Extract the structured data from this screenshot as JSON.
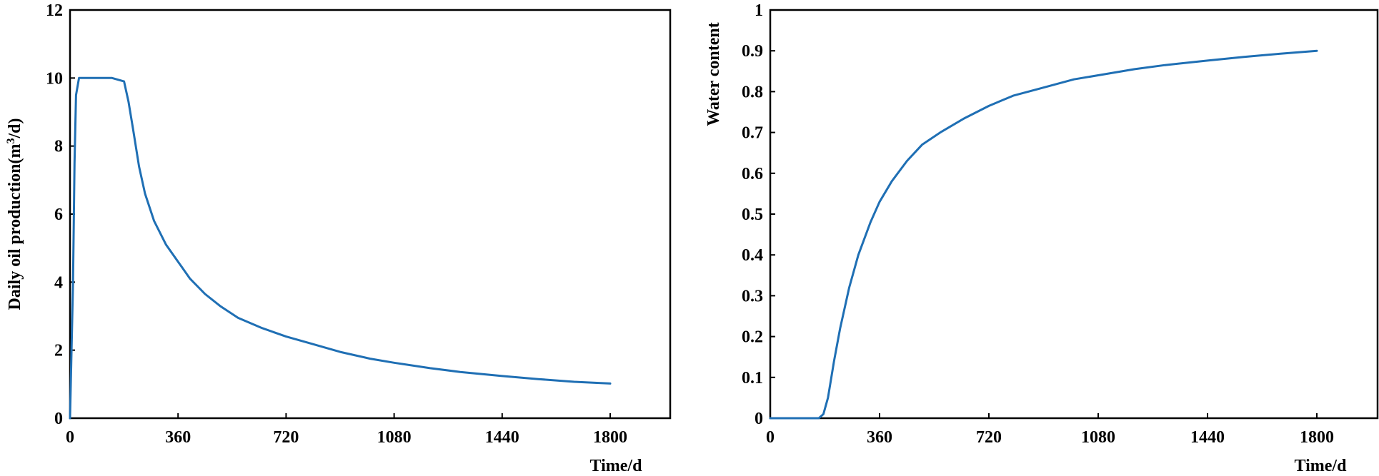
{
  "chart_data": [
    {
      "type": "line",
      "title": "",
      "xlabel": "Time/d",
      "ylabel": "Daily oil production(m³/d)",
      "ylabel_parts": {
        "pre": "Daily oil production(m",
        "sup": "3",
        "post": "/d)"
      },
      "xlim": [
        0,
        2000
      ],
      "ylim": [
        0,
        12
      ],
      "xticks": [
        0,
        360,
        720,
        1080,
        1440,
        1800
      ],
      "yticks": [
        0,
        2,
        4,
        6,
        8,
        10,
        12
      ],
      "grid": false,
      "line_color": "#1f6fb4",
      "series": [
        {
          "x": [
            0,
            5,
            10,
            15,
            20,
            30,
            140,
            180,
            195,
            210,
            230,
            250,
            280,
            320,
            360,
            400,
            450,
            500,
            560,
            640,
            720,
            800,
            900,
            1000,
            1080,
            1200,
            1300,
            1440,
            1560,
            1680,
            1800
          ],
          "y": [
            0,
            2,
            4,
            7.5,
            9.5,
            10,
            10,
            9.9,
            9.3,
            8.5,
            7.4,
            6.6,
            5.8,
            5.1,
            4.6,
            4.1,
            3.65,
            3.3,
            2.95,
            2.65,
            2.4,
            2.2,
            1.95,
            1.75,
            1.63,
            1.47,
            1.36,
            1.24,
            1.15,
            1.07,
            1.02
          ]
        }
      ]
    },
    {
      "type": "line",
      "title": "",
      "xlabel": "Time/d",
      "ylabel": "Water content",
      "xlim": [
        0,
        2000
      ],
      "ylim": [
        0,
        1
      ],
      "xticks": [
        0,
        360,
        720,
        1080,
        1440,
        1800
      ],
      "yticks": [
        0,
        0.1,
        0.2,
        0.3,
        0.4,
        0.5,
        0.6,
        0.7,
        0.8,
        0.9,
        1
      ],
      "grid": false,
      "line_color": "#1f6fb4",
      "series": [
        {
          "x": [
            0,
            100,
            160,
            175,
            190,
            210,
            230,
            260,
            290,
            330,
            360,
            400,
            450,
            500,
            560,
            640,
            720,
            800,
            900,
            1000,
            1080,
            1200,
            1300,
            1440,
            1560,
            1680,
            1800
          ],
          "y": [
            0,
            0,
            0,
            0.01,
            0.05,
            0.14,
            0.22,
            0.32,
            0.4,
            0.48,
            0.53,
            0.58,
            0.63,
            0.67,
            0.7,
            0.735,
            0.765,
            0.79,
            0.81,
            0.83,
            0.84,
            0.855,
            0.865,
            0.876,
            0.885,
            0.893,
            0.9
          ]
        }
      ]
    }
  ]
}
